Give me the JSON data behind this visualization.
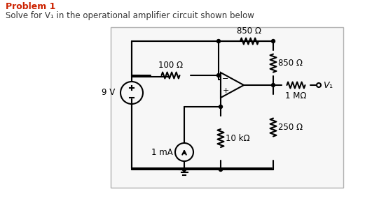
{
  "title_bold": "Problem 1",
  "title_sub": "Solve for V₁ in the operational amplifier circuit shown below",
  "bg_color": "#ffffff",
  "box_fill": "#f7f7f7",
  "box_edge": "#b0b0b0",
  "lc": "#000000",
  "title_color": "#cc2200",
  "sub_color": "#333333",
  "fig_w": 5.21,
  "fig_h": 3.11,
  "dpi": 100,
  "labels": {
    "r_top": "850 Ω",
    "r_100": "100 Ω",
    "r_850v": "850 Ω",
    "r_1M": "1 MΩ",
    "r_250": "250 Ω",
    "r_10k": "10 kΩ",
    "vs": "9 V",
    "cs": "1 mA",
    "v1": "V₁"
  }
}
